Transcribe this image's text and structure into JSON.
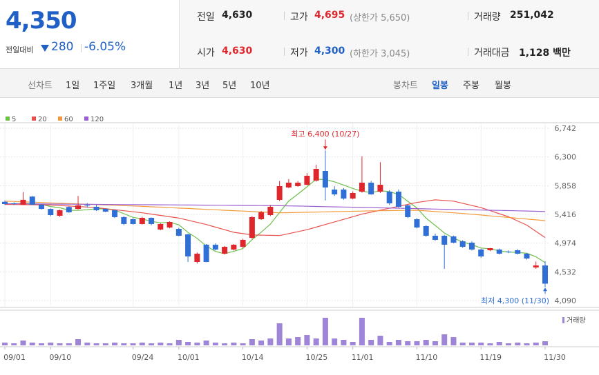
{
  "quote": {
    "price": "4,350",
    "change_label": "전일대비",
    "change": "280",
    "change_pct": "-6.05%",
    "stats": [
      {
        "label": "전일",
        "value": "4,630"
      },
      {
        "label": "고가",
        "value": "4,695",
        "note": "(상한가 5,650)"
      },
      {
        "label": "거래량",
        "value": "251,042"
      },
      {
        "label": "시가",
        "value": "4,630"
      },
      {
        "label": "저가",
        "value": "4,300",
        "note": "(하한가 3,045)"
      },
      {
        "label": "거래대금",
        "value": "1,128 백만"
      }
    ]
  },
  "tabs": {
    "line_label": "선차트",
    "line_periods": [
      "1일",
      "1주일",
      "3개월",
      "1년",
      "3년",
      "5년",
      "10년"
    ],
    "candle_label": "봉차트",
    "candle_periods": [
      "일봉",
      "주봉",
      "월봉"
    ]
  },
  "chart_data": {
    "type": "candlestick",
    "categories": [
      "09/01",
      null,
      null,
      null,
      null,
      "09/10",
      null,
      null,
      null,
      null,
      null,
      null,
      null,
      null,
      "09/24",
      null,
      null,
      null,
      null,
      "10/01",
      null,
      null,
      null,
      null,
      null,
      null,
      "10/14",
      null,
      null,
      null,
      null,
      null,
      null,
      "10/25",
      null,
      null,
      null,
      null,
      "11/01",
      null,
      null,
      null,
      null,
      null,
      null,
      "11/10",
      null,
      null,
      null,
      null,
      null,
      null,
      "11/19",
      null,
      null,
      null,
      null,
      null,
      null,
      "11/30"
    ],
    "open": [
      5610,
      5586,
      5565,
      5690,
      5565,
      5500,
      5395,
      5530,
      5500,
      5560,
      5533,
      5501,
      5480,
      5374,
      5342,
      5268,
      5363,
      5183,
      5214,
      5193,
      5108,
      4684,
      4949,
      4949,
      4811,
      4875,
      4917,
      5055,
      5342,
      5405,
      5639,
      5830,
      5851,
      5872,
      5936,
      6084,
      5798,
      5798,
      5660,
      5766,
      5904,
      5766,
      5766,
      5766,
      5554,
      5342,
      5236,
      5087,
      5087,
      5077,
      5002,
      4981,
      4875,
      4864,
      4875,
      4843,
      4864,
      4811,
      4599,
      4630
    ],
    "high": [
      5630,
      5600,
      5760,
      5700,
      5580,
      5510,
      5490,
      5540,
      5700,
      5590,
      5560,
      5510,
      5490,
      5390,
      5360,
      5380,
      5370,
      5280,
      5310,
      5210,
      5120,
      4830,
      4960,
      4970,
      4930,
      4960,
      5040,
      5390,
      5470,
      5560,
      5930,
      5960,
      5930,
      6050,
      6180,
      6400,
      5850,
      5820,
      5770,
      6310,
      5930,
      6220,
      5790,
      5800,
      5570,
      5360,
      5250,
      5120,
      5100,
      5090,
      5020,
      5000,
      4890,
      4900,
      4890,
      4860,
      4880,
      4820,
      4690,
      4695
    ],
    "low": [
      5560,
      5560,
      5560,
      5560,
      5490,
      5390,
      5380,
      5440,
      5490,
      5520,
      5470,
      5450,
      5360,
      5250,
      5260,
      5260,
      5250,
      5170,
      5200,
      5080,
      4684,
      4660,
      4680,
      4860,
      4800,
      4860,
      4900,
      5040,
      5330,
      5390,
      5620,
      5820,
      5840,
      5860,
      5920,
      5630,
      5700,
      5640,
      5650,
      5750,
      5720,
      5745,
      5560,
      5520,
      5360,
      5200,
      5070,
      5010,
      4578,
      4970,
      4900,
      4860,
      4750,
      4850,
      4800,
      4820,
      4800,
      4720,
      4580,
      4300
    ],
    "close": [
      5575,
      5575,
      5640,
      5565,
      5500,
      5405,
      5480,
      5448,
      5554,
      5554,
      5480,
      5458,
      5374,
      5268,
      5268,
      5363,
      5268,
      5268,
      5299,
      5087,
      4769,
      4811,
      4684,
      4875,
      4917,
      4949,
      5024,
      5374,
      5448,
      5533,
      5851,
      5904,
      5904,
      6010,
      6116,
      5830,
      5724,
      5660,
      5745,
      5904,
      5724,
      5872,
      5586,
      5533,
      5374,
      5214,
      5087,
      5024,
      4949,
      4981,
      4917,
      4875,
      4769,
      4896,
      4811,
      4835,
      4811,
      4737,
      4630,
      4350
    ],
    "up_color": "#e0262d",
    "down_color": "#2f6fd6",
    "ylim": [
      4090,
      6742
    ],
    "yticks": [
      {
        "value": 6742,
        "label": "6,742"
      },
      {
        "value": 6300,
        "label": "6,300"
      },
      {
        "value": 5858,
        "label": "5,858"
      },
      {
        "value": 5416,
        "label": "5,416"
      },
      {
        "value": 4974,
        "label": "4,974"
      },
      {
        "value": 4532,
        "label": "4,532"
      },
      {
        "value": 4090,
        "label": "4,090"
      }
    ],
    "grid": true,
    "moving_averages": [
      {
        "name": "5",
        "color": "#6cbf4a",
        "values": [
          5580,
          5580,
          5585,
          5580,
          5571,
          5537,
          5518,
          5480,
          5477,
          5488,
          5503,
          5499,
          5484,
          5427,
          5370,
          5346,
          5308,
          5287,
          5293,
          5257,
          5138,
          5047,
          4930,
          4845,
          4811,
          4847,
          4890,
          5028,
          5142,
          5266,
          5446,
          5622,
          5728,
          5840,
          5957,
          5953,
          5917,
          5868,
          5815,
          5773,
          5751,
          5781,
          5766,
          5724,
          5618,
          5516,
          5359,
          5246,
          5130,
          5051,
          4992,
          4949,
          4898,
          4888,
          4854,
          4837,
          4830,
          4818,
          4765,
          4673
        ]
      },
      {
        "name": "20",
        "color": "#e8504a",
        "values": [
          5570,
          5568,
          5566,
          5564,
          5562,
          5560,
          5552,
          5544,
          5536,
          5528,
          5520,
          5504,
          5488,
          5472,
          5456,
          5440,
          5420,
          5400,
          5380,
          5360,
          5327,
          5293,
          5260,
          5220,
          5180,
          5140,
          5120,
          5100,
          5097,
          5093,
          5090,
          5120,
          5150,
          5180,
          5220,
          5260,
          5300,
          5340,
          5380,
          5420,
          5450,
          5480,
          5510,
          5540,
          5570,
          5600,
          5620,
          5640,
          5630,
          5620,
          5587,
          5553,
          5520,
          5473,
          5427,
          5380,
          5315,
          5250,
          5155,
          5060
        ]
      },
      {
        "name": "60",
        "color": "#f29a3a",
        "values": [
          5620,
          5615,
          5609,
          5604,
          5599,
          5593,
          5588,
          5583,
          5577,
          5572,
          5567,
          5561,
          5556,
          5551,
          5545,
          5540,
          5533,
          5527,
          5520,
          5513,
          5507,
          5500,
          5493,
          5487,
          5480,
          5473,
          5467,
          5460,
          5453,
          5447,
          5440,
          5443,
          5446,
          5449,
          5452,
          5455,
          5458,
          5461,
          5464,
          5467,
          5470,
          5472,
          5474,
          5476,
          5478,
          5480,
          5470,
          5460,
          5450,
          5440,
          5430,
          5418,
          5406,
          5393,
          5381,
          5369,
          5357,
          5344,
          5332,
          5320
        ]
      },
      {
        "name": "120",
        "color": "#9b5fd0",
        "values": [
          5580,
          5579,
          5578,
          5577,
          5576,
          5575,
          5574,
          5573,
          5572,
          5571,
          5570,
          5569,
          5568,
          5567,
          5566,
          5565,
          5564,
          5563,
          5562,
          5561,
          5560,
          5559,
          5558,
          5557,
          5556,
          5555,
          5554,
          5553,
          5552,
          5551,
          5550,
          5547,
          5544,
          5541,
          5538,
          5535,
          5532,
          5529,
          5526,
          5523,
          5520,
          5517,
          5514,
          5511,
          5508,
          5505,
          5501,
          5498,
          5495,
          5492,
          5489,
          5486,
          5483,
          5480,
          5477,
          5474,
          5471,
          5468,
          5464,
          5460
        ]
      }
    ],
    "volume": {
      "label": "거래량",
      "color": "#9f85d8",
      "ylim": [
        0,
        2100000
      ],
      "values": [
        168000,
        126000,
        294000,
        168000,
        126000,
        168000,
        126000,
        126000,
        378000,
        168000,
        126000,
        126000,
        168000,
        126000,
        126000,
        168000,
        126000,
        168000,
        126000,
        336000,
        210000,
        168000,
        294000,
        168000,
        126000,
        168000,
        126000,
        378000,
        294000,
        420000,
        1344000,
        420000,
        504000,
        630000,
        420000,
        1680000,
        420000,
        336000,
        210000,
        1680000,
        336000,
        588000,
        210000,
        336000,
        252000,
        252000,
        336000,
        252000,
        672000,
        504000,
        168000,
        168000,
        168000,
        126000,
        210000,
        126000,
        168000,
        126000,
        168000,
        251042
      ]
    },
    "annotations": {
      "high": "최고 6,400 (10/27)",
      "low": "최저 4,300 (11/30)"
    }
  }
}
